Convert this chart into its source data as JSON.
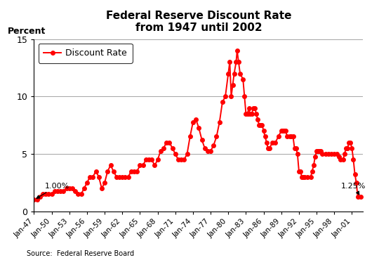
{
  "title_line1": "Federal Reserve Discount Rate",
  "title_line2": "from 1947 until 2002",
  "ylabel": "Percent",
  "source": "Source:  Federal Reserve Board",
  "legend_label": "Discount Rate",
  "line_color": "#FF0000",
  "marker": "o",
  "markersize": 4,
  "ylim": [
    0,
    15
  ],
  "yticks": [
    0,
    5,
    10,
    15
  ],
  "annotation1_text": "1.00%",
  "annotation2_text": "1.25%",
  "xtick_labels": [
    "Jan-47",
    "Jan-50",
    "Jan-53",
    "Jan-56",
    "Jan-59",
    "Jan-62",
    "Jan-65",
    "Jan-68",
    "Jan-71",
    "Jan-74",
    "Jan-77",
    "Jan-80",
    "Jan-83",
    "Jan-86",
    "Jan-89",
    "Jan-92",
    "Jan-95",
    "Jan-98",
    "Jan-01"
  ],
  "data": [
    [
      1947,
      1,
      1.0
    ],
    [
      1947,
      7,
      1.0
    ],
    [
      1948,
      1,
      1.25
    ],
    [
      1948,
      7,
      1.5
    ],
    [
      1949,
      1,
      1.5
    ],
    [
      1949,
      7,
      1.5
    ],
    [
      1950,
      1,
      1.5
    ],
    [
      1950,
      7,
      1.75
    ],
    [
      1951,
      1,
      1.75
    ],
    [
      1951,
      7,
      1.75
    ],
    [
      1952,
      1,
      1.75
    ],
    [
      1952,
      7,
      2.0
    ],
    [
      1953,
      1,
      2.0
    ],
    [
      1953,
      7,
      2.0
    ],
    [
      1954,
      1,
      1.75
    ],
    [
      1954,
      7,
      1.5
    ],
    [
      1955,
      1,
      1.5
    ],
    [
      1955,
      7,
      2.0
    ],
    [
      1956,
      1,
      2.5
    ],
    [
      1956,
      7,
      3.0
    ],
    [
      1957,
      1,
      3.0
    ],
    [
      1957,
      7,
      3.5
    ],
    [
      1958,
      1,
      3.0
    ],
    [
      1958,
      7,
      2.0
    ],
    [
      1959,
      1,
      2.5
    ],
    [
      1959,
      7,
      3.5
    ],
    [
      1960,
      1,
      4.0
    ],
    [
      1960,
      7,
      3.5
    ],
    [
      1961,
      1,
      3.0
    ],
    [
      1961,
      7,
      3.0
    ],
    [
      1962,
      1,
      3.0
    ],
    [
      1962,
      7,
      3.0
    ],
    [
      1963,
      1,
      3.0
    ],
    [
      1963,
      7,
      3.5
    ],
    [
      1964,
      1,
      3.5
    ],
    [
      1964,
      7,
      3.5
    ],
    [
      1965,
      1,
      4.0
    ],
    [
      1965,
      7,
      4.0
    ],
    [
      1966,
      1,
      4.5
    ],
    [
      1966,
      7,
      4.5
    ],
    [
      1967,
      1,
      4.5
    ],
    [
      1967,
      7,
      4.0
    ],
    [
      1968,
      1,
      4.5
    ],
    [
      1968,
      7,
      5.25
    ],
    [
      1969,
      1,
      5.5
    ],
    [
      1969,
      7,
      6.0
    ],
    [
      1970,
      1,
      6.0
    ],
    [
      1970,
      7,
      5.5
    ],
    [
      1971,
      1,
      5.0
    ],
    [
      1971,
      7,
      4.5
    ],
    [
      1972,
      1,
      4.5
    ],
    [
      1972,
      7,
      4.5
    ],
    [
      1973,
      1,
      5.0
    ],
    [
      1973,
      7,
      6.5
    ],
    [
      1974,
      1,
      7.75
    ],
    [
      1974,
      7,
      8.0
    ],
    [
      1975,
      1,
      7.25
    ],
    [
      1975,
      7,
      6.25
    ],
    [
      1976,
      1,
      5.5
    ],
    [
      1976,
      7,
      5.25
    ],
    [
      1977,
      1,
      5.25
    ],
    [
      1977,
      7,
      5.75
    ],
    [
      1978,
      1,
      6.5
    ],
    [
      1978,
      7,
      7.75
    ],
    [
      1979,
      1,
      9.5
    ],
    [
      1979,
      7,
      10.0
    ],
    [
      1980,
      1,
      12.0
    ],
    [
      1980,
      4,
      13.0
    ],
    [
      1980,
      7,
      10.0
    ],
    [
      1980,
      10,
      11.0
    ],
    [
      1981,
      1,
      12.0
    ],
    [
      1981,
      5,
      13.0
    ],
    [
      1981,
      7,
      14.0
    ],
    [
      1981,
      10,
      13.0
    ],
    [
      1982,
      1,
      12.0
    ],
    [
      1982,
      7,
      11.5
    ],
    [
      1982,
      10,
      10.0
    ],
    [
      1983,
      1,
      8.5
    ],
    [
      1983,
      4,
      8.5
    ],
    [
      1983,
      7,
      9.0
    ],
    [
      1983,
      9,
      8.5
    ],
    [
      1984,
      1,
      8.5
    ],
    [
      1984,
      4,
      9.0
    ],
    [
      1984,
      7,
      9.0
    ],
    [
      1984,
      10,
      8.5
    ],
    [
      1985,
      1,
      8.0
    ],
    [
      1985,
      4,
      7.5
    ],
    [
      1985,
      7,
      7.5
    ],
    [
      1985,
      10,
      7.5
    ],
    [
      1986,
      1,
      7.0
    ],
    [
      1986,
      4,
      6.5
    ],
    [
      1986,
      7,
      6.0
    ],
    [
      1986,
      10,
      5.5
    ],
    [
      1987,
      1,
      5.5
    ],
    [
      1987,
      7,
      6.0
    ],
    [
      1988,
      1,
      6.0
    ],
    [
      1988,
      7,
      6.5
    ],
    [
      1989,
      1,
      7.0
    ],
    [
      1989,
      4,
      7.0
    ],
    [
      1989,
      7,
      7.0
    ],
    [
      1989,
      10,
      7.0
    ],
    [
      1990,
      1,
      6.5
    ],
    [
      1990,
      7,
      6.5
    ],
    [
      1990,
      10,
      6.5
    ],
    [
      1991,
      1,
      6.5
    ],
    [
      1991,
      4,
      5.5
    ],
    [
      1991,
      7,
      5.5
    ],
    [
      1991,
      10,
      5.0
    ],
    [
      1992,
      1,
      3.5
    ],
    [
      1992,
      4,
      3.5
    ],
    [
      1992,
      7,
      3.0
    ],
    [
      1992,
      10,
      3.0
    ],
    [
      1993,
      1,
      3.0
    ],
    [
      1993,
      7,
      3.0
    ],
    [
      1994,
      1,
      3.0
    ],
    [
      1994,
      4,
      3.5
    ],
    [
      1994,
      7,
      4.0
    ],
    [
      1994,
      10,
      4.75
    ],
    [
      1995,
      1,
      5.25
    ],
    [
      1995,
      4,
      5.25
    ],
    [
      1995,
      7,
      5.25
    ],
    [
      1995,
      10,
      5.25
    ],
    [
      1996,
      1,
      5.0
    ],
    [
      1996,
      7,
      5.0
    ],
    [
      1997,
      1,
      5.0
    ],
    [
      1997,
      7,
      5.0
    ],
    [
      1998,
      1,
      5.0
    ],
    [
      1998,
      7,
      5.0
    ],
    [
      1998,
      10,
      4.75
    ],
    [
      1999,
      1,
      4.5
    ],
    [
      1999,
      7,
      4.5
    ],
    [
      1999,
      10,
      5.0
    ],
    [
      2000,
      1,
      5.5
    ],
    [
      2000,
      4,
      5.5
    ],
    [
      2000,
      7,
      6.0
    ],
    [
      2000,
      10,
      6.0
    ],
    [
      2001,
      1,
      5.5
    ],
    [
      2001,
      4,
      4.5
    ],
    [
      2001,
      7,
      3.25
    ],
    [
      2001,
      10,
      2.5
    ],
    [
      2002,
      1,
      1.25
    ],
    [
      2002,
      7,
      1.25
    ]
  ]
}
